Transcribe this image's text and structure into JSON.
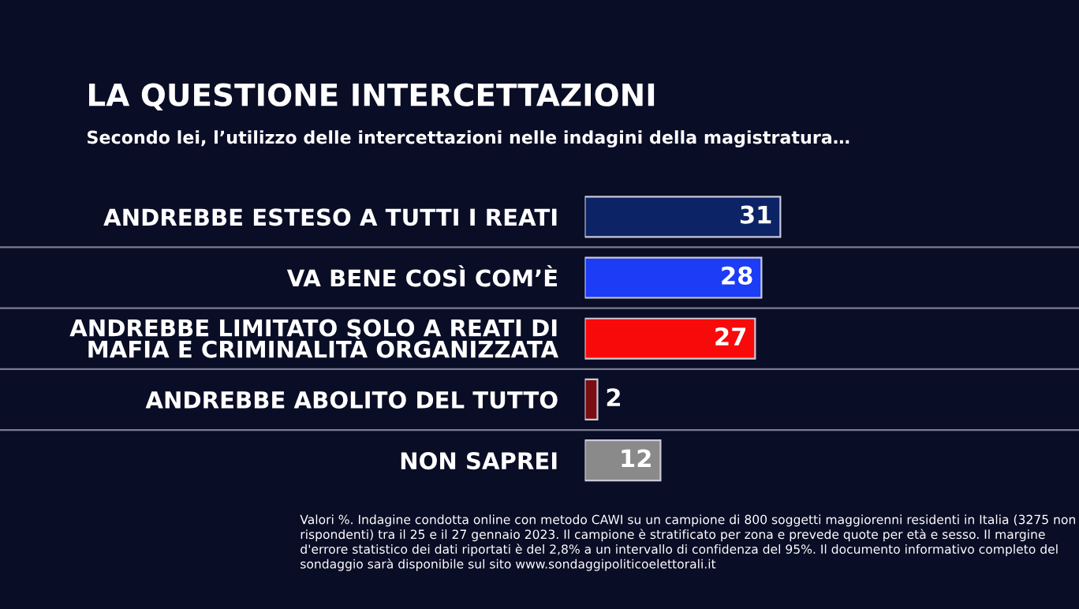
{
  "chart_data": {
    "type": "bar",
    "orientation": "horizontal",
    "title": "LA QUESTIONE INTERCETTAZIONI",
    "subtitle": "Secondo lei, l’utilizzo delle intercettazioni nelle indagini della magistratura…",
    "categories": [
      "ANDREBBE ESTESO A TUTTI I REATI",
      "VA BENE COSÌ COM’È",
      "ANDREBBE LIMITATO SOLO A REATI DI\nMAFIA E CRIMINALITÀ ORGANIZZATA",
      "ANDREBBE ABOLITO DEL TUTTO",
      "NON SAPREI"
    ],
    "values": [
      31,
      28,
      27,
      2,
      12
    ],
    "colors": [
      "#0c2466",
      "#1c3cf5",
      "#f80a0a",
      "#7a0d12",
      "#8a8a8a"
    ],
    "data_labels": true,
    "annotations": [
      "Valori %. Indagine condotta online con metodo CAWI su un campione di 800 soggetti maggiorenni residenti in Italia (3275 non rispondenti) tra il 25 e il 27 gennaio 2023. Il campione è stratificato per zona e prevede quote per età e sesso. Il margine d'errore statistico dei dati riportati è del 2,8% a un intervallo di confidenza del 95%. Il documento informativo completo del sondaggio sarà disponibile sul sito www.sondaggipoliticoelettorali.it"
    ]
  }
}
